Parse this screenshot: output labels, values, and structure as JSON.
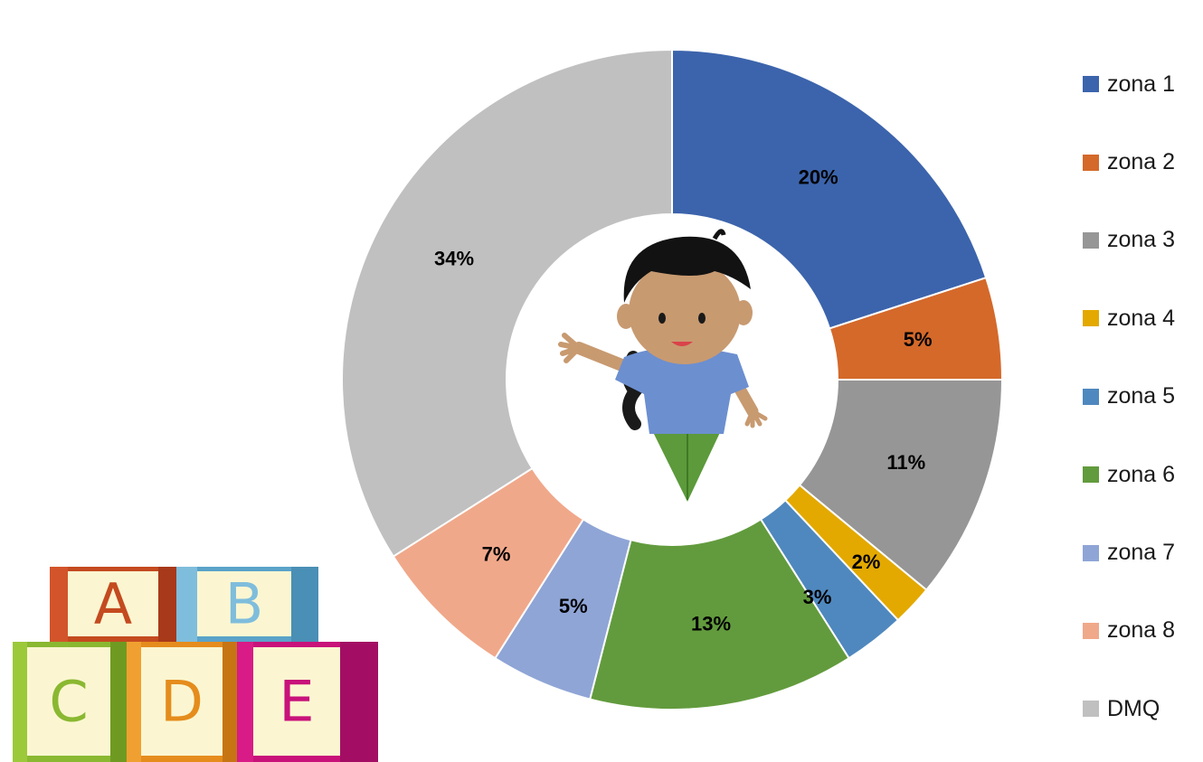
{
  "chart_data": {
    "type": "pie",
    "variant": "donut",
    "categories": [
      "zona 1",
      "zona 2",
      "zona 3",
      "zona 4",
      "zona 5",
      "zona 6",
      "zona 7",
      "zona 8",
      "DMQ"
    ],
    "values": [
      20,
      5,
      11,
      2,
      3,
      13,
      5,
      7,
      34
    ],
    "value_labels": [
      "20%",
      "5%",
      "11%",
      "2%",
      "3%",
      "13%",
      "5%",
      "7%",
      "34%"
    ],
    "colors": [
      "#3c64ac",
      "#d4692a",
      "#969696",
      "#e3a900",
      "#4f88be",
      "#629b3d",
      "#8fa5d6",
      "#f0a88a",
      "#c0c0c0"
    ],
    "legend_position": "right",
    "title": ""
  },
  "decorations": {
    "center_image": "girl-illustration",
    "corner_image": "alphabet-blocks",
    "blocks_letters": [
      "A",
      "B",
      "C",
      "D",
      "E"
    ]
  }
}
